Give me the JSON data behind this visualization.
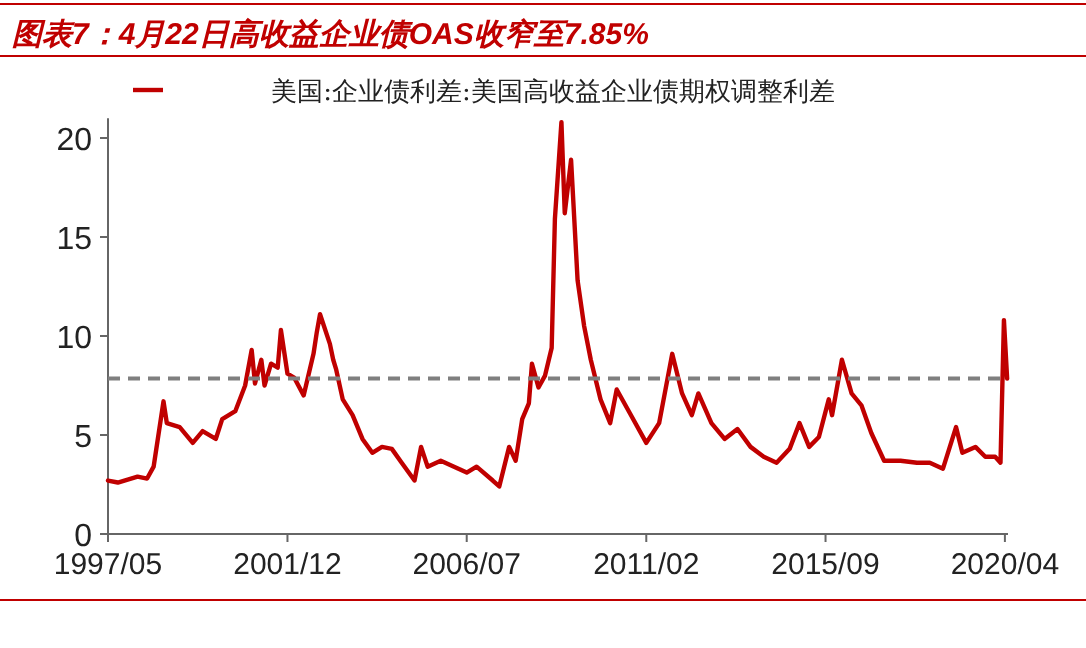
{
  "chart_data": {
    "type": "line",
    "title": "图表7：4月22日高收益企业债OAS收窄至7.85%",
    "legend": "top",
    "grid": false,
    "xlim": [
      "1997-05-01",
      "2020-04-30"
    ],
    "xticks": [
      {
        "value": "1997-05",
        "label": "1997/05"
      },
      {
        "value": "2001-12",
        "label": "2001/12"
      },
      {
        "value": "2006-07",
        "label": "2006/07"
      },
      {
        "value": "2011-02",
        "label": "2011/02"
      },
      {
        "value": "2015-09",
        "label": "2015/09"
      },
      {
        "value": "2020-04",
        "label": "2020/04"
      }
    ],
    "ylim": [
      0,
      21
    ],
    "yticks": [
      0,
      5,
      10,
      15,
      20
    ],
    "ref_lines": [
      {
        "axis": "y",
        "value": 7.85,
        "color": "#7f7f7f",
        "line_style": "dashed"
      }
    ],
    "series": [
      {
        "name": "美国:企业债利差:美国高收益企业债期权调整利差",
        "color": "#c00000",
        "line_style": "solid",
        "x": [
          "1997-05",
          "1997-08",
          "1998-02",
          "1998-05",
          "1998-07",
          "1998-10",
          "1998-11",
          "1999-03",
          "1999-07",
          "1999-10",
          "2000-02",
          "2000-04",
          "2000-08",
          "2000-11",
          "2001-01",
          "2001-02",
          "2001-04",
          "2001-05",
          "2001-07",
          "2001-09",
          "2001-10",
          "2001-12",
          "2002-02",
          "2002-05",
          "2002-08",
          "2002-09",
          "2002-10",
          "2003-01",
          "2003-02",
          "2003-03",
          "2003-05",
          "2003-08",
          "2003-11",
          "2004-02",
          "2004-05",
          "2004-08",
          "2004-11",
          "2005-03",
          "2005-05",
          "2005-07",
          "2005-11",
          "2006-07",
          "2006-10",
          "2007-03",
          "2007-05",
          "2007-08",
          "2007-10",
          "2007-12",
          "2008-02",
          "2008-03",
          "2008-05",
          "2008-07",
          "2008-09",
          "2008-10",
          "2008-12",
          "2009-01",
          "2009-03",
          "2009-05",
          "2009-07",
          "2009-09",
          "2009-12",
          "2010-03",
          "2010-05",
          "2010-09",
          "2011-02",
          "2011-06",
          "2011-10",
          "2012-01",
          "2012-04",
          "2012-06",
          "2012-10",
          "2013-02",
          "2013-06",
          "2013-10",
          "2014-02",
          "2014-06",
          "2014-10",
          "2015-01",
          "2015-04",
          "2015-07",
          "2015-10",
          "2015-11",
          "2016-02",
          "2016-05",
          "2016-08",
          "2016-11",
          "2017-03",
          "2017-08",
          "2018-01",
          "2018-05",
          "2018-09",
          "2019-01",
          "2019-03",
          "2019-07",
          "2019-10",
          "2020-01",
          "2020-02-20",
          "2020-03-23",
          "2020-04-22"
        ],
        "values": [
          2.7,
          2.6,
          2.9,
          2.8,
          3.4,
          6.7,
          5.6,
          5.4,
          4.6,
          5.2,
          4.8,
          5.8,
          6.2,
          7.5,
          9.3,
          7.6,
          8.8,
          7.5,
          8.6,
          8.4,
          10.3,
          8.1,
          7.9,
          7.0,
          9.1,
          10.2,
          11.1,
          9.6,
          8.8,
          8.3,
          6.8,
          6.0,
          4.8,
          4.1,
          4.4,
          4.3,
          3.6,
          2.7,
          4.4,
          3.4,
          3.7,
          3.1,
          3.4,
          2.7,
          2.4,
          4.4,
          3.7,
          5.8,
          6.6,
          8.6,
          7.4,
          8.0,
          9.4,
          15.9,
          20.8,
          16.2,
          18.9,
          12.8,
          10.5,
          8.8,
          6.8,
          5.6,
          7.3,
          6.1,
          4.6,
          5.6,
          9.1,
          7.1,
          6.0,
          7.1,
          5.6,
          4.8,
          5.3,
          4.4,
          3.9,
          3.6,
          4.3,
          5.6,
          4.4,
          4.9,
          6.8,
          6.0,
          8.8,
          7.1,
          6.5,
          5.1,
          3.7,
          3.7,
          3.6,
          3.6,
          3.3,
          5.4,
          4.1,
          4.4,
          3.9,
          3.9,
          3.6,
          10.8,
          7.85
        ]
      }
    ]
  }
}
